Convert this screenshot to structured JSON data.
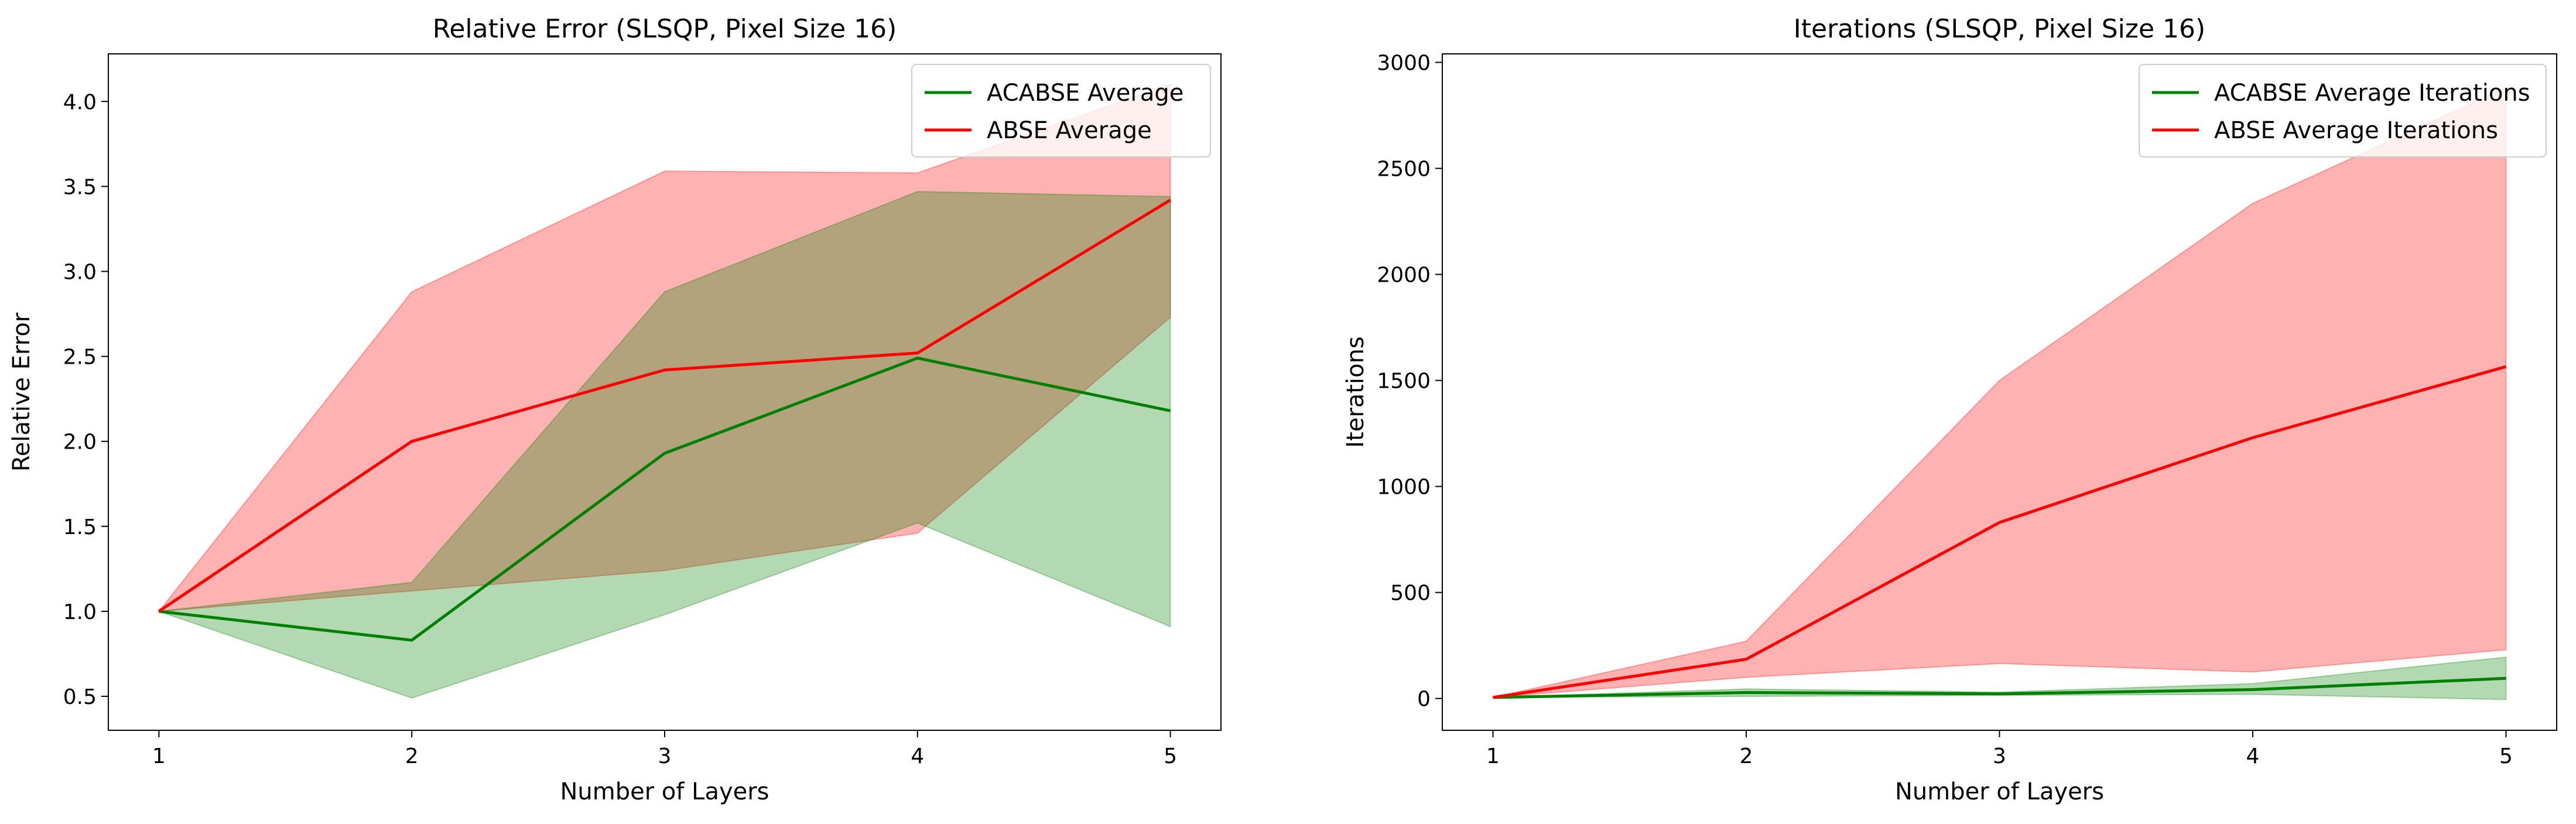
{
  "chart_data": [
    {
      "type": "line",
      "title": "Relative Error (SLSQP, Pixel Size 16)",
      "xlabel": "Number of Layers",
      "ylabel": "Relative Error",
      "x": [
        1,
        2,
        3,
        4,
        5
      ],
      "xlim": [
        0.8,
        5.2
      ],
      "ylim": [
        0.3,
        4.28
      ],
      "xticks": [
        "1",
        "2",
        "3",
        "4",
        "5"
      ],
      "yticks": [
        "0.5",
        "1.0",
        "1.5",
        "2.0",
        "2.5",
        "3.0",
        "3.5",
        "4.0"
      ],
      "grid": false,
      "legend_position": "top-right",
      "series": [
        {
          "name": "ACABSE Average",
          "color": "#008000",
          "values": [
            1.0,
            0.83,
            1.93,
            2.49,
            2.18
          ],
          "band_lower": [
            1.0,
            0.49,
            0.98,
            1.52,
            0.91
          ],
          "band_upper": [
            1.0,
            1.17,
            2.88,
            3.47,
            3.44
          ]
        },
        {
          "name": "ABSE Average",
          "color": "#ff0000",
          "values": [
            1.0,
            2.0,
            2.42,
            2.52,
            3.42
          ],
          "band_lower": [
            1.0,
            1.12,
            1.24,
            1.46,
            2.73
          ],
          "band_upper": [
            1.0,
            2.88,
            3.59,
            3.58,
            4.1
          ]
        }
      ]
    },
    {
      "type": "line",
      "title": "Iterations (SLSQP, Pixel Size 16)",
      "xlabel": "Number of Layers",
      "ylabel": "Iterations",
      "x": [
        1,
        2,
        3,
        4,
        5
      ],
      "xlim": [
        0.8,
        5.2
      ],
      "ylim": [
        -150,
        3040
      ],
      "xticks": [
        "1",
        "2",
        "3",
        "4",
        "5"
      ],
      "yticks": [
        "0",
        "500",
        "1000",
        "1500",
        "2000",
        "2500",
        "3000"
      ],
      "grid": false,
      "legend_position": "top-right",
      "series": [
        {
          "name": "ACABSE Average Iterations",
          "color": "#008000",
          "values": [
            5,
            28,
            22,
            42,
            95
          ],
          "band_lower": [
            5,
            10,
            15,
            20,
            -5
          ],
          "band_upper": [
            5,
            45,
            30,
            70,
            195
          ]
        },
        {
          "name": "ABSE Average Iterations",
          "color": "#ff0000",
          "values": [
            5,
            185,
            830,
            1230,
            1565
          ],
          "band_lower": [
            5,
            100,
            165,
            125,
            230
          ],
          "band_upper": [
            5,
            270,
            1500,
            2335,
            2880
          ]
        }
      ]
    }
  ]
}
